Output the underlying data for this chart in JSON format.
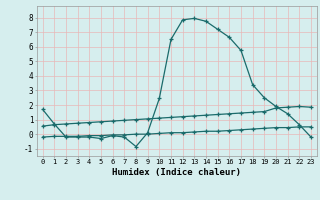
{
  "xlabel": "Humidex (Indice chaleur)",
  "xlim": [
    -0.5,
    23.5
  ],
  "ylim": [
    -1.5,
    8.8
  ],
  "xticks": [
    0,
    1,
    2,
    3,
    4,
    5,
    6,
    7,
    8,
    9,
    10,
    11,
    12,
    13,
    14,
    15,
    16,
    17,
    18,
    19,
    20,
    21,
    22,
    23
  ],
  "yticks": [
    -1,
    0,
    1,
    2,
    3,
    4,
    5,
    6,
    7,
    8
  ],
  "bg_color": "#d6eeee",
  "grid_color": "#c0dede",
  "line_color": "#1a6b6b",
  "line1_x": [
    0,
    1,
    2,
    3,
    4,
    5,
    6,
    7,
    8,
    9,
    10,
    11,
    12,
    13,
    14,
    15,
    16,
    17,
    18,
    19,
    20,
    21,
    22,
    23
  ],
  "line1_y": [
    1.7,
    0.7,
    -0.2,
    -0.2,
    -0.2,
    -0.3,
    -0.1,
    -0.2,
    -0.85,
    0.1,
    2.45,
    6.5,
    7.85,
    7.95,
    7.75,
    7.2,
    6.65,
    5.75,
    3.4,
    2.5,
    1.9,
    1.4,
    0.65,
    -0.2
  ],
  "line2_x": [
    0,
    1,
    2,
    3,
    4,
    5,
    6,
    7,
    8,
    9,
    10,
    11,
    12,
    13,
    14,
    15,
    16,
    17,
    18,
    19,
    20,
    21,
    22,
    23
  ],
  "line2_y": [
    0.55,
    0.65,
    0.7,
    0.75,
    0.8,
    0.85,
    0.9,
    0.95,
    1.0,
    1.05,
    1.1,
    1.15,
    1.2,
    1.25,
    1.3,
    1.35,
    1.4,
    1.45,
    1.5,
    1.55,
    1.8,
    1.85,
    1.9,
    1.85
  ],
  "line3_x": [
    0,
    1,
    2,
    3,
    4,
    5,
    6,
    7,
    8,
    9,
    10,
    11,
    12,
    13,
    14,
    15,
    16,
    17,
    18,
    19,
    20,
    21,
    22,
    23
  ],
  "line3_y": [
    -0.2,
    -0.15,
    -0.15,
    -0.15,
    -0.1,
    -0.1,
    -0.05,
    -0.05,
    0.0,
    0.0,
    0.05,
    0.1,
    0.1,
    0.15,
    0.2,
    0.2,
    0.25,
    0.3,
    0.35,
    0.4,
    0.45,
    0.45,
    0.5,
    0.5
  ]
}
